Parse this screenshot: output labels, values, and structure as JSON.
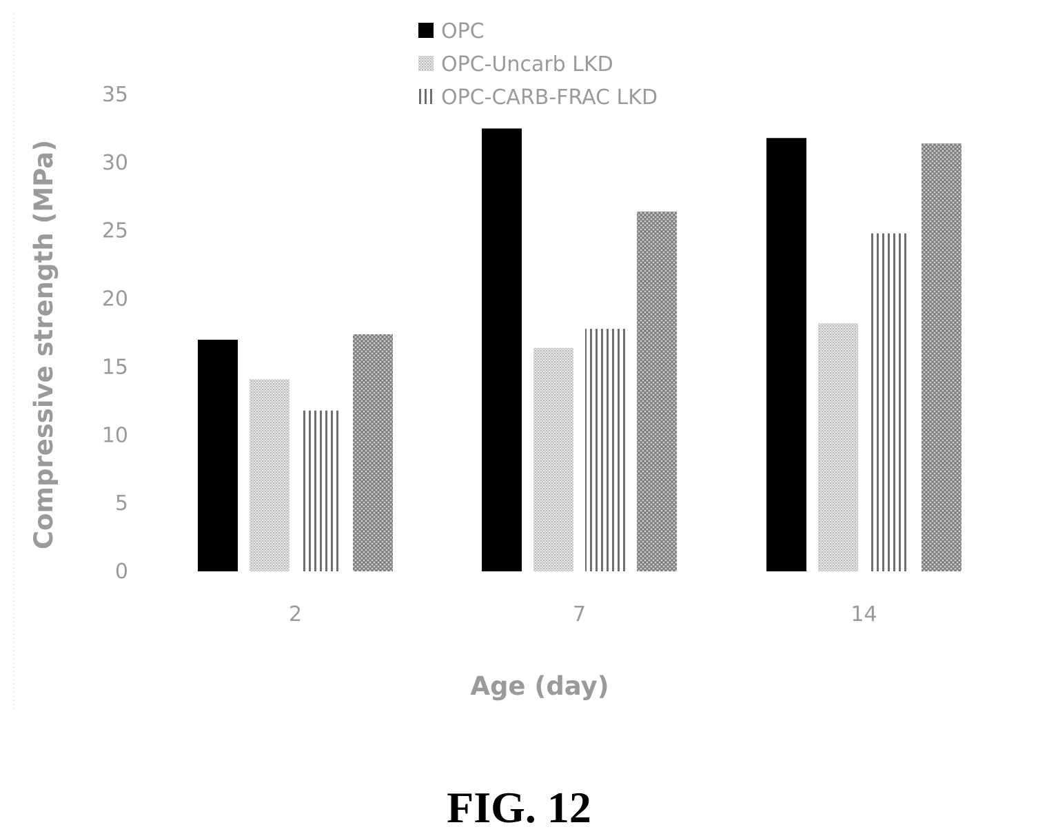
{
  "chart_data": {
    "type": "bar",
    "title": "",
    "xlabel": "Age (day)",
    "ylabel": "Compressive strength (MPa)",
    "ylim": [
      0,
      35
    ],
    "yticks": [
      "0",
      "5",
      "10",
      "15",
      "20",
      "25",
      "30",
      "35"
    ],
    "categories": [
      "2",
      "7",
      "14"
    ],
    "grid": false,
    "legend_placement": "top",
    "legend": [
      "OPC",
      "OPC-Uncarb LKD",
      "OPC-CARB-FRAC LKD"
    ],
    "series": [
      {
        "name": "OPC",
        "fill": "solid-black",
        "values": [
          17.0,
          32.5,
          31.8
        ]
      },
      {
        "name": "OPC-Uncarb LKD",
        "fill": "light-gray-dots",
        "values": [
          14.1,
          16.4,
          18.2
        ]
      },
      {
        "name": "OPC-CARB-FRAC LKD",
        "fill": "vertical-stripes",
        "values": [
          11.8,
          17.8,
          24.8
        ]
      },
      {
        "values": [
          17.4,
          26.4,
          31.4
        ],
        "fill": "dark-crosshatch"
      }
    ]
  },
  "caption": "FIG. 12"
}
